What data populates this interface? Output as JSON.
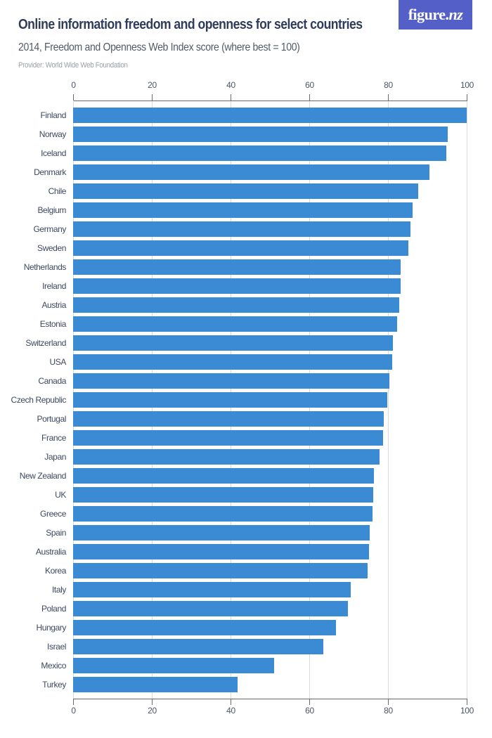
{
  "header": {
    "title": "Online information freedom and openness for select countries",
    "subtitle": "2014, Freedom and Openness Web Index score (where best = 100)",
    "provider": "Provider: World Wide Web Foundation"
  },
  "logo": {
    "text_main": "figure.",
    "text_accent": "nz",
    "background": "#5460c8"
  },
  "colors": {
    "bar": "#3a8ad4",
    "gridline": "#d9d9d9",
    "axis": "#6a6a6a",
    "title": "#2f3d5b"
  },
  "chart_data": {
    "type": "bar",
    "orientation": "horizontal",
    "title": "Online information freedom and openness for select countries",
    "subtitle": "2014, Freedom and Openness Web Index score (where best = 100)",
    "xlabel": "",
    "ylabel": "",
    "xlim": [
      0,
      100
    ],
    "x_ticks": [
      0,
      20,
      40,
      60,
      80,
      100
    ],
    "x_tick_labels": [
      "0",
      "20",
      "40",
      "60",
      "80",
      "100"
    ],
    "grid": true,
    "legend": null,
    "categories": [
      "Finland",
      "Norway",
      "Iceland",
      "Denmark",
      "Chile",
      "Belgium",
      "Germany",
      "Sweden",
      "Netherlands",
      "Ireland",
      "Austria",
      "Estonia",
      "Switzerland",
      "USA",
      "Canada",
      "Czech Republic",
      "Portugal",
      "France",
      "Japan",
      "New Zealand",
      "UK",
      "Greece",
      "Spain",
      "Australia",
      "Korea",
      "Italy",
      "Poland",
      "Hungary",
      "Israel",
      "Mexico",
      "Turkey"
    ],
    "values": [
      100,
      95.1,
      94.9,
      90.5,
      87.7,
      86.2,
      85.8,
      85.1,
      83.3,
      83.3,
      82.8,
      82.4,
      81.3,
      81.1,
      80.3,
      79.8,
      79.0,
      78.7,
      77.9,
      76.4,
      76.2,
      76.1,
      75.3,
      75.2,
      74.9,
      70.5,
      69.8,
      66.7,
      63.5,
      51.1,
      41.7
    ]
  }
}
